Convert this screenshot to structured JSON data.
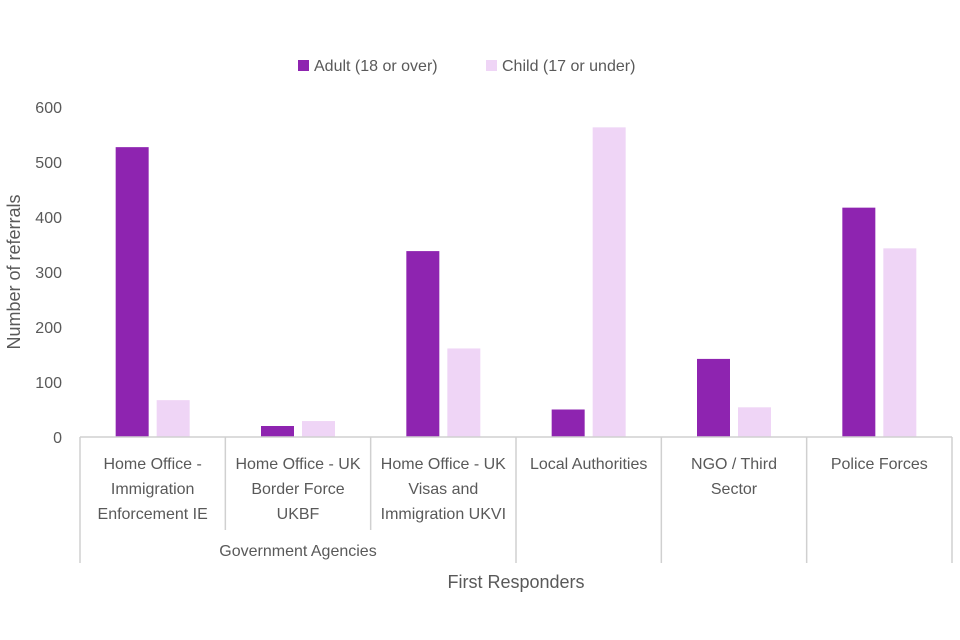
{
  "chart_data": {
    "type": "bar",
    "legend": [
      {
        "name": "Adult (18 or over)",
        "color": "#8e24b0"
      },
      {
        "name": "Child (17 or under)",
        "color": "#efd5f6"
      }
    ],
    "categories": [
      {
        "lines": [
          "Home Office -",
          "Immigration",
          "Enforcement IE"
        ]
      },
      {
        "lines": [
          "Home Office - UK",
          "Border Force",
          "UKBF"
        ]
      },
      {
        "lines": [
          "Home Office - UK",
          "Visas and",
          "Immigration UKVI"
        ]
      },
      {
        "lines": [
          "Local Authorities"
        ]
      },
      {
        "lines": [
          "NGO / Third",
          "Sector"
        ]
      },
      {
        "lines": [
          "Police Forces"
        ]
      }
    ],
    "groups": [
      {
        "label": "Government Agencies",
        "span": [
          0,
          2
        ]
      }
    ],
    "series": [
      {
        "name": "Adult (18 or over)",
        "values": [
          527,
          20,
          338,
          50,
          142,
          417
        ]
      },
      {
        "name": "Child (17 or under)",
        "values": [
          67,
          29,
          161,
          563,
          54,
          343
        ]
      }
    ],
    "ylabel": "Number of referrals",
    "xlabel": "First Responders",
    "ylim": [
      0,
      600
    ],
    "yticks": [
      0,
      100,
      200,
      300,
      400,
      500,
      600
    ]
  }
}
